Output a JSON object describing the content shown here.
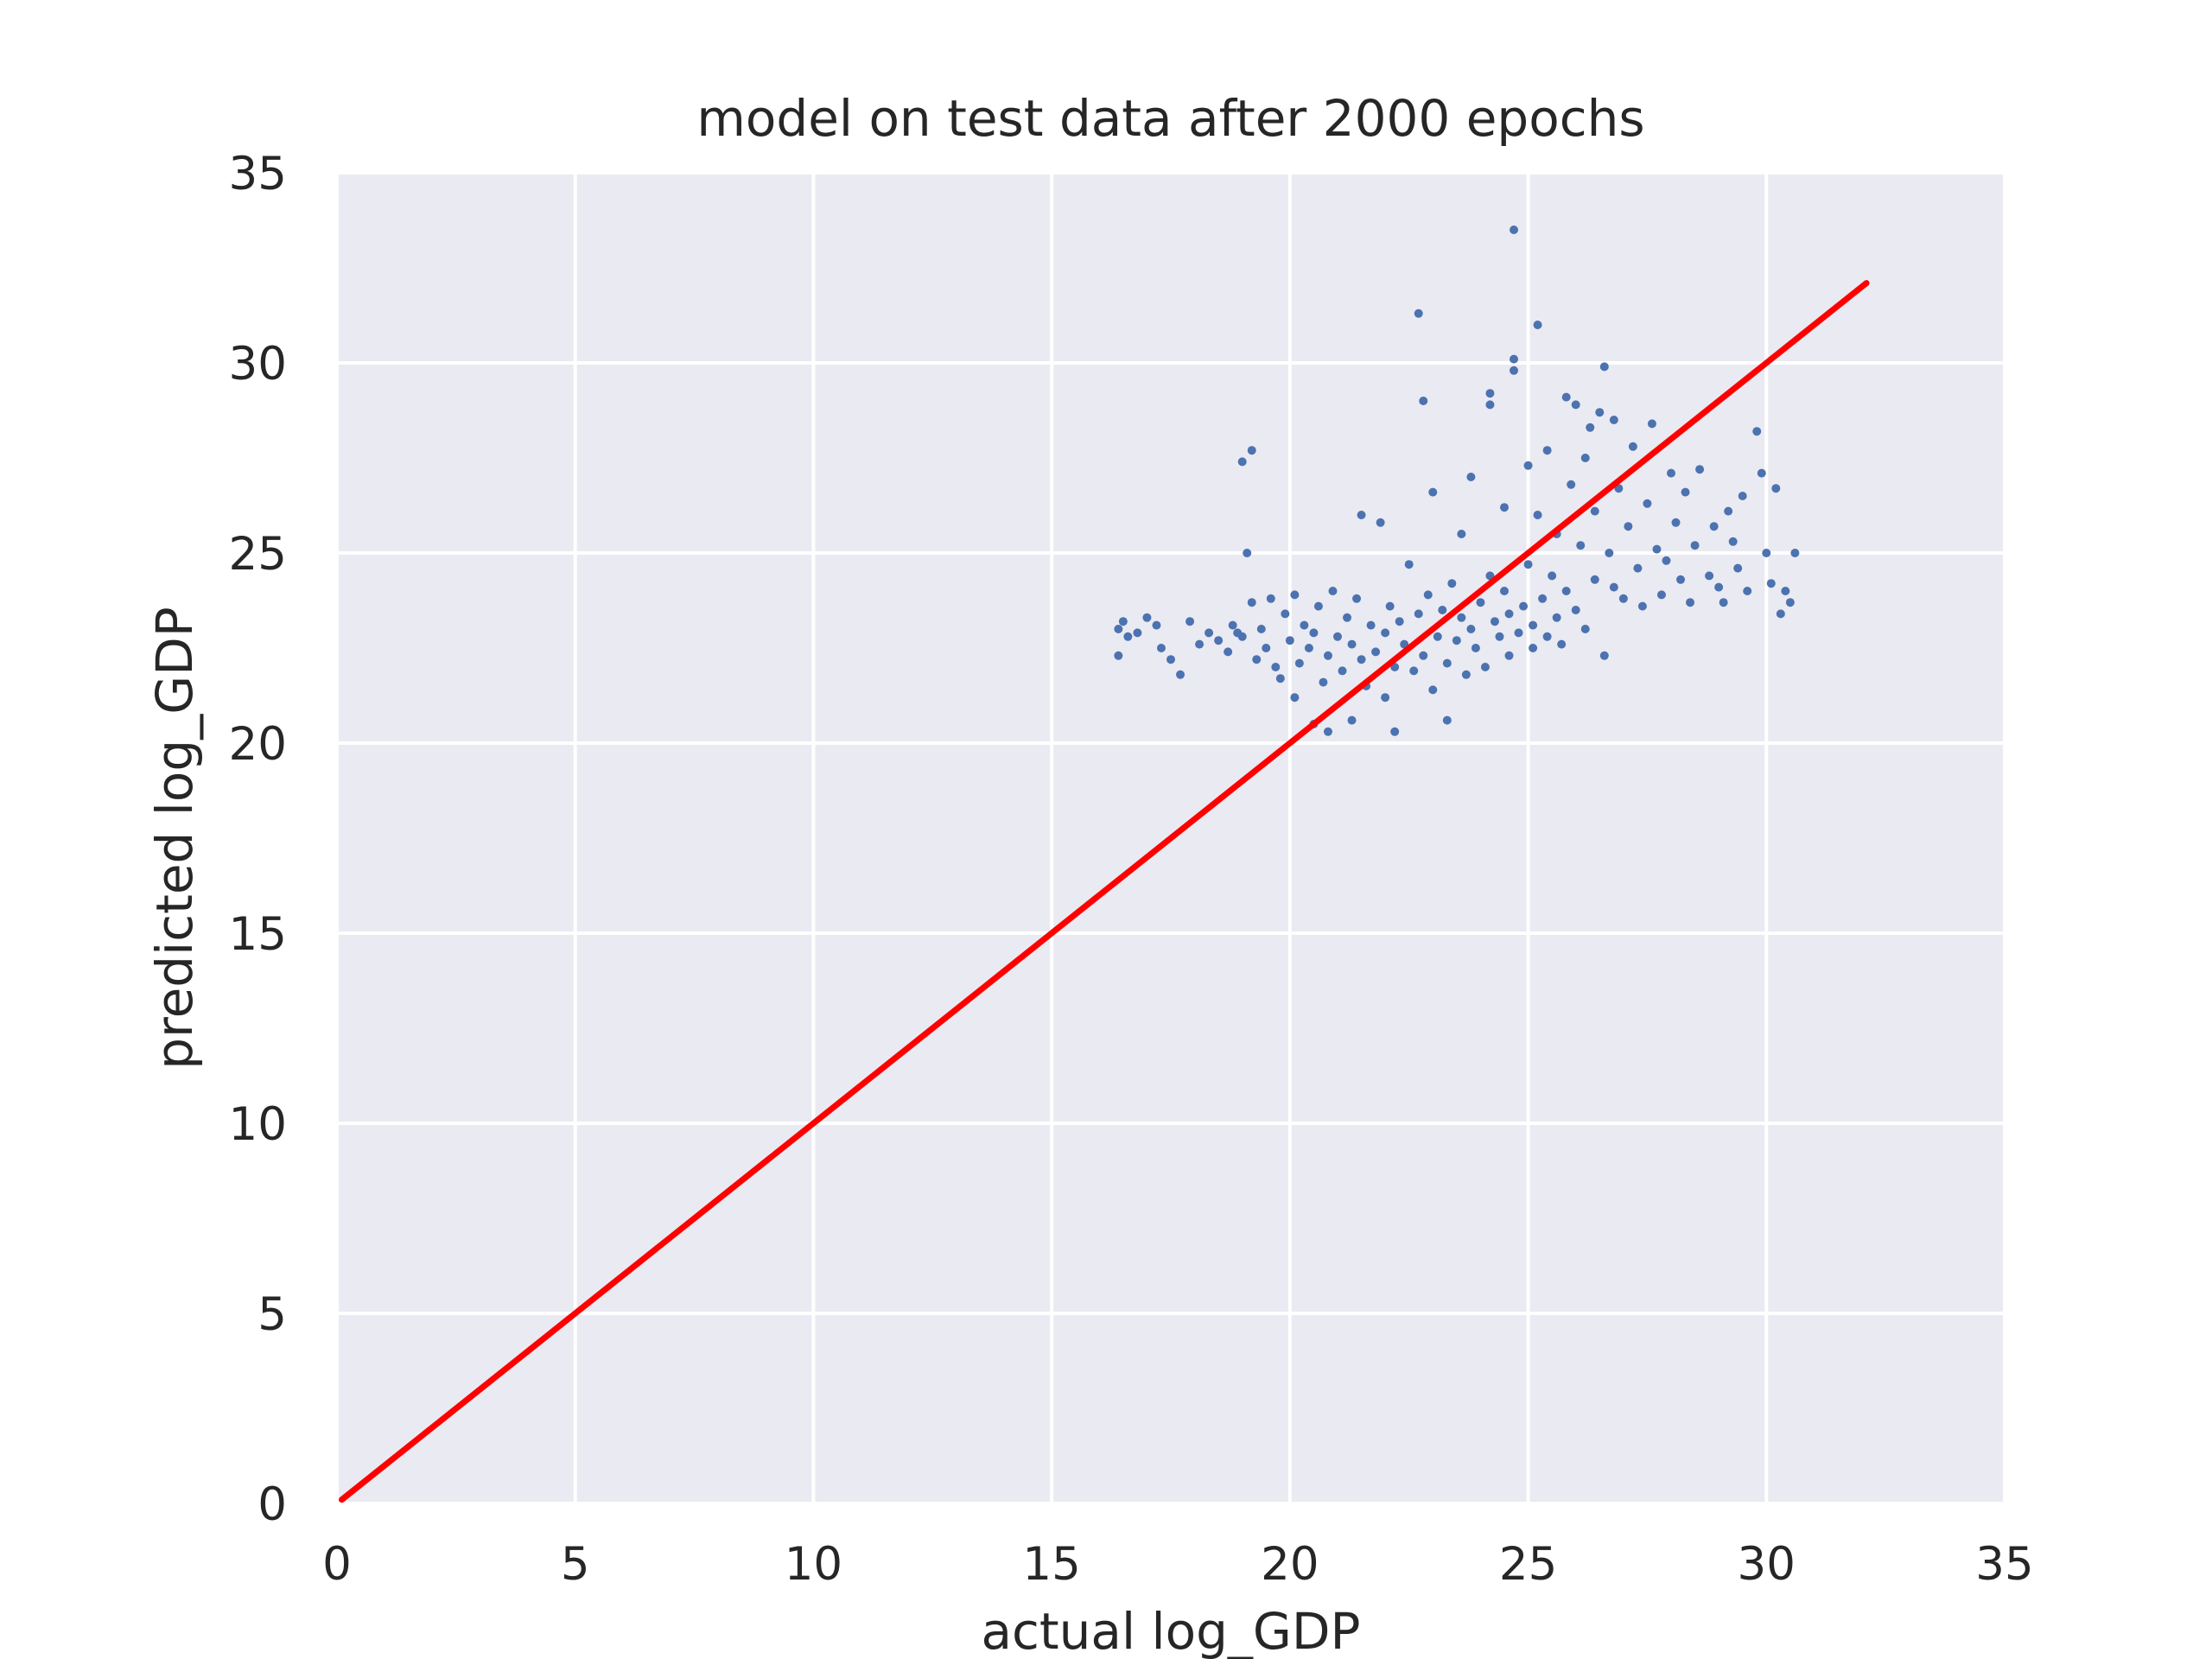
{
  "chart_data": {
    "type": "scatter",
    "title": "model on test data after 2000 epochs",
    "xlabel": "actual log_GDP",
    "ylabel": "predicted log_GDP",
    "xlim": [
      0,
      35
    ],
    "ylim": [
      0,
      35
    ],
    "xticks": [
      0,
      5,
      10,
      15,
      20,
      25,
      30,
      35
    ],
    "yticks": [
      0,
      5,
      10,
      15,
      20,
      25,
      30,
      35
    ],
    "xtick_labels": [
      "0",
      "5",
      "10",
      "15",
      "20",
      "25",
      "30",
      "35"
    ],
    "ytick_labels": [
      "0",
      "5",
      "10",
      "15",
      "20",
      "25",
      "30",
      "35"
    ],
    "grid": true,
    "legend": "none",
    "colors": {
      "background": "#eaeaf2",
      "grid": "#ffffff",
      "points": "#4c72b0",
      "line": "#ff0000"
    },
    "series": [
      {
        "kind": "scatter",
        "points": [
          [
            16.4,
            22.3
          ],
          [
            16.4,
            23.0
          ],
          [
            16.5,
            23.2
          ],
          [
            16.6,
            22.8
          ],
          [
            16.8,
            22.9
          ],
          [
            17.0,
            23.3
          ],
          [
            17.2,
            23.1
          ],
          [
            17.3,
            22.5
          ],
          [
            17.5,
            22.2
          ],
          [
            17.7,
            21.8
          ],
          [
            17.9,
            23.2
          ],
          [
            18.1,
            22.6
          ],
          [
            18.3,
            22.9
          ],
          [
            18.5,
            22.7
          ],
          [
            18.7,
            22.4
          ],
          [
            18.8,
            23.1
          ],
          [
            18.9,
            22.9
          ],
          [
            19.0,
            22.8
          ],
          [
            19.0,
            27.4
          ],
          [
            19.2,
            27.7
          ],
          [
            19.1,
            25.0
          ],
          [
            19.2,
            23.7
          ],
          [
            19.3,
            22.2
          ],
          [
            19.4,
            23.0
          ],
          [
            19.5,
            22.5
          ],
          [
            19.6,
            23.8
          ],
          [
            19.7,
            22.0
          ],
          [
            19.8,
            21.7
          ],
          [
            19.9,
            23.4
          ],
          [
            20.0,
            22.7
          ],
          [
            20.1,
            23.9
          ],
          [
            20.1,
            21.2
          ],
          [
            20.2,
            22.1
          ],
          [
            20.3,
            23.1
          ],
          [
            20.4,
            22.5
          ],
          [
            20.5,
            22.9
          ],
          [
            20.5,
            20.5
          ],
          [
            20.6,
            23.6
          ],
          [
            20.7,
            21.6
          ],
          [
            20.8,
            22.3
          ],
          [
            20.8,
            20.3
          ],
          [
            20.9,
            24.0
          ],
          [
            21.0,
            22.8
          ],
          [
            21.1,
            21.9
          ],
          [
            21.2,
            23.3
          ],
          [
            21.3,
            22.6
          ],
          [
            21.3,
            20.6
          ],
          [
            21.4,
            23.8
          ],
          [
            21.5,
            22.2
          ],
          [
            21.5,
            26.0
          ],
          [
            21.6,
            21.5
          ],
          [
            21.7,
            23.1
          ],
          [
            21.8,
            22.4
          ],
          [
            21.9,
            25.8
          ],
          [
            22.0,
            22.9
          ],
          [
            22.0,
            21.2
          ],
          [
            22.1,
            23.6
          ],
          [
            22.2,
            20.3
          ],
          [
            22.2,
            22.0
          ],
          [
            22.3,
            23.2
          ],
          [
            22.4,
            22.6
          ],
          [
            22.5,
            24.7
          ],
          [
            22.6,
            21.9
          ],
          [
            22.7,
            23.4
          ],
          [
            22.8,
            22.3
          ],
          [
            22.8,
            29.0
          ],
          [
            22.7,
            31.3
          ],
          [
            22.9,
            23.9
          ],
          [
            23.0,
            21.4
          ],
          [
            23.0,
            26.6
          ],
          [
            23.1,
            22.8
          ],
          [
            23.2,
            23.5
          ],
          [
            23.3,
            20.6
          ],
          [
            23.3,
            22.1
          ],
          [
            23.4,
            24.2
          ],
          [
            23.5,
            22.7
          ],
          [
            23.6,
            23.3
          ],
          [
            23.6,
            25.5
          ],
          [
            23.7,
            21.8
          ],
          [
            23.8,
            23.0
          ],
          [
            23.8,
            27.0
          ],
          [
            23.9,
            22.5
          ],
          [
            24.0,
            23.7
          ],
          [
            24.1,
            22.0
          ],
          [
            24.2,
            24.4
          ],
          [
            24.2,
            28.9
          ],
          [
            24.2,
            29.2
          ],
          [
            24.3,
            23.2
          ],
          [
            24.4,
            22.8
          ],
          [
            24.5,
            26.2
          ],
          [
            24.5,
            24.0
          ],
          [
            24.6,
            23.4
          ],
          [
            24.6,
            22.3
          ],
          [
            24.7,
            30.1
          ],
          [
            24.7,
            29.8
          ],
          [
            24.7,
            33.5
          ],
          [
            24.8,
            22.9
          ],
          [
            24.9,
            23.6
          ],
          [
            25.0,
            27.3
          ],
          [
            25.0,
            24.7
          ],
          [
            25.1,
            22.5
          ],
          [
            25.1,
            23.1
          ],
          [
            25.2,
            31.0
          ],
          [
            25.2,
            26.0
          ],
          [
            25.3,
            23.8
          ],
          [
            25.4,
            22.8
          ],
          [
            25.4,
            27.7
          ],
          [
            25.5,
            24.4
          ],
          [
            25.6,
            23.3
          ],
          [
            25.6,
            25.5
          ],
          [
            25.7,
            22.6
          ],
          [
            25.8,
            29.1
          ],
          [
            25.8,
            24.0
          ],
          [
            25.9,
            26.8
          ],
          [
            26.0,
            23.5
          ],
          [
            26.0,
            28.9
          ],
          [
            26.1,
            25.2
          ],
          [
            26.2,
            23.0
          ],
          [
            26.2,
            27.5
          ],
          [
            26.3,
            28.3
          ],
          [
            26.4,
            24.3
          ],
          [
            26.4,
            26.1
          ],
          [
            26.5,
            28.7
          ],
          [
            26.6,
            29.9
          ],
          [
            26.6,
            22.3
          ],
          [
            26.7,
            25.0
          ],
          [
            26.8,
            24.1
          ],
          [
            26.8,
            28.5
          ],
          [
            26.9,
            26.7
          ],
          [
            27.0,
            23.8
          ],
          [
            27.1,
            25.7
          ],
          [
            27.2,
            27.8
          ],
          [
            27.3,
            24.6
          ],
          [
            27.4,
            23.6
          ],
          [
            27.5,
            26.3
          ],
          [
            27.6,
            28.4
          ],
          [
            27.7,
            25.1
          ],
          [
            27.8,
            23.9
          ],
          [
            27.9,
            24.8
          ],
          [
            28.0,
            27.1
          ],
          [
            28.1,
            25.8
          ],
          [
            28.2,
            24.3
          ],
          [
            28.3,
            26.6
          ],
          [
            28.4,
            23.7
          ],
          [
            28.5,
            25.2
          ],
          [
            28.6,
            27.2
          ],
          [
            28.8,
            24.4
          ],
          [
            28.9,
            25.7
          ],
          [
            29.0,
            24.1
          ],
          [
            29.1,
            23.7
          ],
          [
            29.2,
            26.1
          ],
          [
            29.3,
            25.3
          ],
          [
            29.4,
            24.6
          ],
          [
            29.5,
            26.5
          ],
          [
            29.6,
            24.0
          ],
          [
            29.8,
            28.2
          ],
          [
            29.9,
            27.1
          ],
          [
            30.0,
            25.0
          ],
          [
            30.1,
            24.2
          ],
          [
            30.2,
            26.7
          ],
          [
            30.3,
            23.4
          ],
          [
            30.4,
            24.0
          ],
          [
            30.5,
            23.7
          ],
          [
            30.6,
            25.0
          ]
        ]
      },
      {
        "kind": "line",
        "x": [
          0.1,
          32.1
        ],
        "y": [
          0.1,
          32.1
        ]
      }
    ]
  }
}
